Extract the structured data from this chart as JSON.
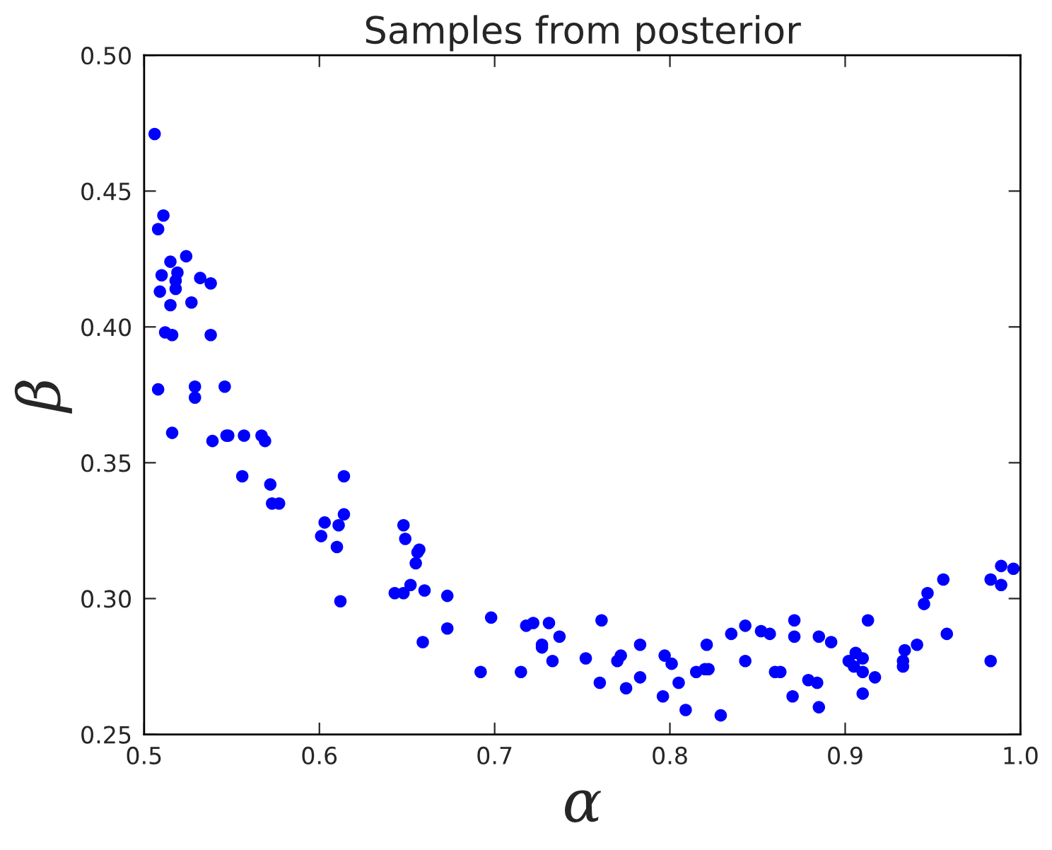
{
  "chart_data": {
    "type": "scatter",
    "title": "Samples from posterior",
    "xlabel": "α",
    "ylabel": "β",
    "xlim": [
      0.5,
      1.0
    ],
    "ylim": [
      0.25,
      0.5
    ],
    "xticks": [
      0.5,
      0.6,
      0.7,
      0.8,
      0.9,
      {
        "value": 1.0,
        "label": "1.0"
      }
    ],
    "yticks": [
      0.25,
      {
        "value": 0.3,
        "label": "0.30"
      },
      0.35,
      {
        "value": 0.4,
        "label": "0.40"
      },
      0.45,
      {
        "value": 0.5,
        "label": "0.50"
      }
    ],
    "grid": false,
    "marker": "circle",
    "series": [
      {
        "color": "#0000ff",
        "x": [
          0.506,
          0.508,
          0.511,
          0.51,
          0.509,
          0.515,
          0.519,
          0.518,
          0.518,
          0.524,
          0.532,
          0.538,
          0.515,
          0.527,
          0.512,
          0.516,
          0.538,
          0.508,
          0.529,
          0.529,
          0.546,
          0.516,
          0.539,
          0.547,
          0.548,
          0.557,
          0.567,
          0.569,
          0.556,
          0.572,
          0.573,
          0.577,
          0.614,
          0.614,
          0.603,
          0.601,
          0.611,
          0.61,
          0.612,
          0.648,
          0.649,
          0.643,
          0.648,
          0.652,
          0.656,
          0.657,
          0.655,
          0.66,
          0.659,
          0.673,
          0.673,
          0.692,
          0.698,
          0.715,
          0.718,
          0.722,
          0.727,
          0.727,
          0.731,
          0.733,
          0.737,
          0.752,
          0.761,
          0.76,
          0.77,
          0.772,
          0.775,
          0.783,
          0.783,
          0.796,
          0.797,
          0.801,
          0.805,
          0.809,
          0.815,
          0.82,
          0.822,
          0.821,
          0.829,
          0.835,
          0.843,
          0.843,
          0.852,
          0.857,
          0.86,
          0.863,
          0.871,
          0.871,
          0.87,
          0.879,
          0.884,
          0.885,
          0.885,
          0.892,
          0.902,
          0.905,
          0.906,
          0.91,
          0.91,
          0.91,
          0.913,
          0.917,
          0.933,
          0.933,
          0.934,
          0.941,
          0.945,
          0.947,
          0.956,
          0.958,
          0.983,
          0.983,
          0.989,
          0.989,
          0.996
        ],
        "values": [
          0.471,
          0.436,
          0.441,
          0.419,
          0.413,
          0.424,
          0.42,
          0.417,
          0.414,
          0.426,
          0.418,
          0.416,
          0.408,
          0.409,
          0.398,
          0.397,
          0.397,
          0.377,
          0.378,
          0.374,
          0.378,
          0.361,
          0.358,
          0.36,
          0.36,
          0.36,
          0.36,
          0.358,
          0.345,
          0.342,
          0.335,
          0.335,
          0.345,
          0.331,
          0.328,
          0.323,
          0.327,
          0.319,
          0.299,
          0.327,
          0.322,
          0.302,
          0.302,
          0.305,
          0.317,
          0.318,
          0.313,
          0.303,
          0.284,
          0.301,
          0.289,
          0.273,
          0.293,
          0.273,
          0.29,
          0.291,
          0.283,
          0.282,
          0.291,
          0.277,
          0.286,
          0.278,
          0.292,
          0.269,
          0.277,
          0.279,
          0.267,
          0.283,
          0.271,
          0.264,
          0.279,
          0.276,
          0.269,
          0.259,
          0.273,
          0.274,
          0.274,
          0.283,
          0.257,
          0.287,
          0.29,
          0.277,
          0.288,
          0.287,
          0.273,
          0.273,
          0.292,
          0.286,
          0.264,
          0.27,
          0.269,
          0.286,
          0.26,
          0.284,
          0.277,
          0.275,
          0.28,
          0.278,
          0.273,
          0.265,
          0.292,
          0.271,
          0.275,
          0.277,
          0.281,
          0.283,
          0.298,
          0.302,
          0.307,
          0.287,
          0.307,
          0.277,
          0.312,
          0.305,
          0.311
        ]
      }
    ]
  }
}
